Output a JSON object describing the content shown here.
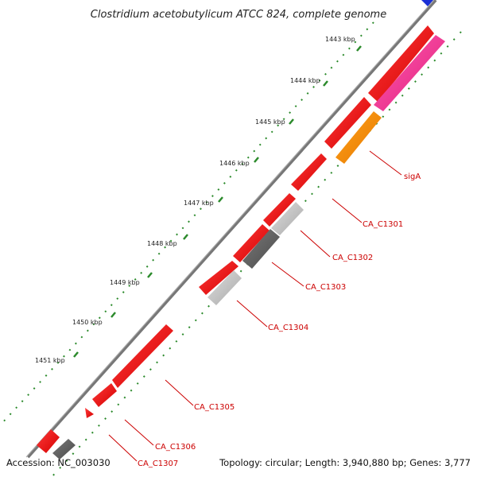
{
  "title": "Clostridium acetobutylicum ATCC 824, complete genome",
  "footer": {
    "accession": "Accession: NC_003030",
    "summary": "Topology: circular; Length: 3,940,880 bp; Genes: 3,777"
  },
  "colors": {
    "backbone": "#777777",
    "tick": "#2b8a2b",
    "forward_cds": "#e81010",
    "reverse_cds_dark": "#606060",
    "reverse_cds_light": "#bdbdbd",
    "rrna": "#ee2d8c",
    "sigA": "#ff8c00",
    "label": "#cc0000",
    "corner_marker": "#1a2fd6"
  },
  "scale": {
    "unit": "kbp",
    "labels": [
      "1443 kbp",
      "1444 kbp",
      "1445 kbp",
      "1446 kbp",
      "1447 kbp",
      "1448 kbp",
      "1449 kbp",
      "1450 kbp",
      "1451 kbp"
    ]
  },
  "genes": [
    "sigA",
    "CA_C1301",
    "CA_C1302",
    "CA_C1303",
    "CA_C1304",
    "CA_C1305",
    "CA_C1306",
    "CA_C1307"
  ]
}
